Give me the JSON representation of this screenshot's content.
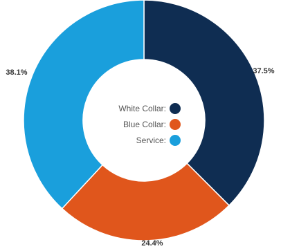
{
  "chart_data": {
    "type": "pie",
    "donut": true,
    "categories": [
      "White Collar",
      "Blue Collar",
      "Service"
    ],
    "values": [
      37.5,
      24.4,
      38.1
    ],
    "value_labels": [
      "37.5%",
      "24.4%",
      "38.1%"
    ],
    "legend": {
      "placement": "center",
      "entries": [
        "White Collar:",
        "Blue Collar:",
        "Service:"
      ]
    },
    "colors": [
      "#0f2d52",
      "#e0561c",
      "#1a9fdc"
    ],
    "start": "top, clockwise"
  }
}
